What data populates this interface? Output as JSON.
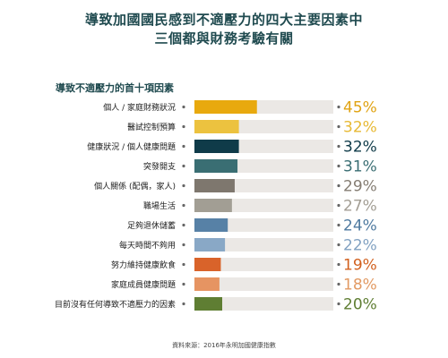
{
  "title_lines": [
    "導致加國國民感到不適壓力的四大主要因素中",
    "三個都與財務考驗有關"
  ],
  "chart_data": {
    "type": "bar",
    "orientation": "horizontal",
    "title": "導致不適壓力的首十項因素",
    "categories": [
      "個人 / 家庭財務狀況",
      "醫試控制預算",
      "健康狀況 / 個人健康問題",
      "突發開支",
      "個人關係 (配偶，家人)",
      "職場生活",
      "足夠退休儲蓄",
      "每天時間不夠用",
      "努力維持健康飲食",
      "家庭成員健康問題",
      "目前沒有任何導致不適壓力的因素"
    ],
    "values": [
      45,
      32,
      32,
      31,
      29,
      27,
      24,
      22,
      19,
      18,
      20
    ],
    "value_labels": [
      "45%",
      "32%",
      "32%",
      "31%",
      "29%",
      "27%",
      "24%",
      "22%",
      "19%",
      "18%",
      "20%"
    ],
    "bar_colors": [
      "#e8a90e",
      "#ecc23f",
      "#0f3b49",
      "#3a6e73",
      "#7e776e",
      "#a29e94",
      "#5781a6",
      "#89a8c6",
      "#d9632a",
      "#e69462",
      "#5f7e33"
    ],
    "label_colors": [
      "#e0a313",
      "#e7b934",
      "#0f3b49",
      "#3a6e73",
      "#857d73",
      "#a39e94",
      "#4f7aa0",
      "#82a2c2",
      "#d2611f",
      "#e29a63",
      "#5f7e33"
    ],
    "track_color": "#ebe8e5",
    "xlim": [
      0,
      100
    ]
  },
  "source": "資料來源：2016年永明加國健康指數"
}
